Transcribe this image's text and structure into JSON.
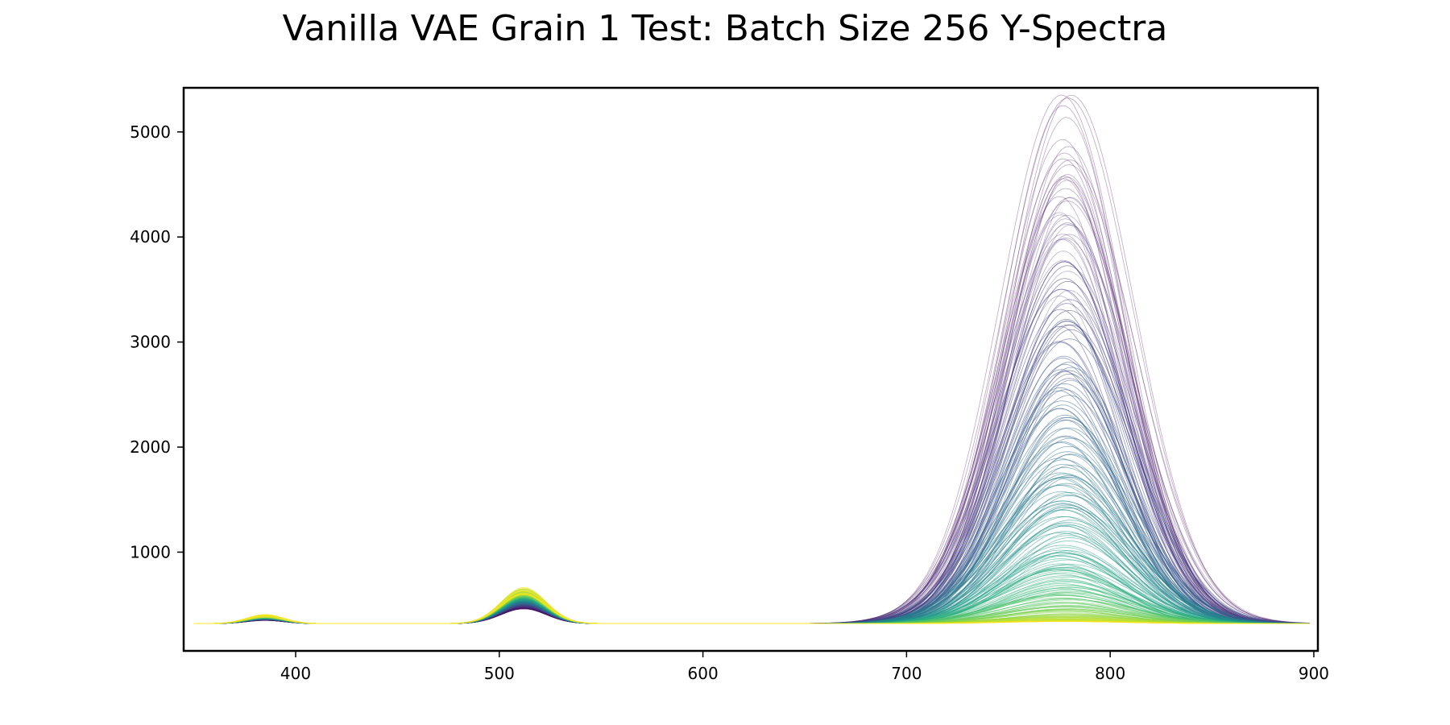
{
  "chart_data": {
    "type": "line",
    "title": "Vanilla VAE Grain 1 Test: Batch Size 256 Y-Spectra",
    "xlabel": "",
    "ylabel": "",
    "xlim": [
      345,
      902
    ],
    "ylim": [
      60,
      5420
    ],
    "grid": false,
    "legend": "none",
    "colormap": "viridis",
    "colormap_stops": [
      "#440154",
      "#482878",
      "#3e4989",
      "#31688e",
      "#26828e",
      "#1f9e89",
      "#35b779",
      "#6ece58",
      "#b5de2b",
      "#fde725"
    ],
    "x_ticks": [
      400,
      500,
      600,
      700,
      800,
      900
    ],
    "x_tick_labels": [
      "400",
      "500",
      "600",
      "700",
      "800",
      "900"
    ],
    "y_ticks": [
      1000,
      2000,
      3000,
      4000,
      5000
    ],
    "y_tick_labels": [
      "1000",
      "2000",
      "3000",
      "4000",
      "5000"
    ],
    "x_range": [
      350,
      898
    ],
    "baseline": 320,
    "spectrum_count": 256,
    "peaks": [
      {
        "center": 778,
        "width": 30,
        "amplitude_min": 20,
        "amplitude_max": 4850
      },
      {
        "center": 512,
        "width": 11,
        "amplitude_min": 140,
        "amplitude_max": 320
      },
      {
        "center": 385,
        "width": 9,
        "amplitude_min": 30,
        "amplitude_max": 75
      }
    ]
  }
}
